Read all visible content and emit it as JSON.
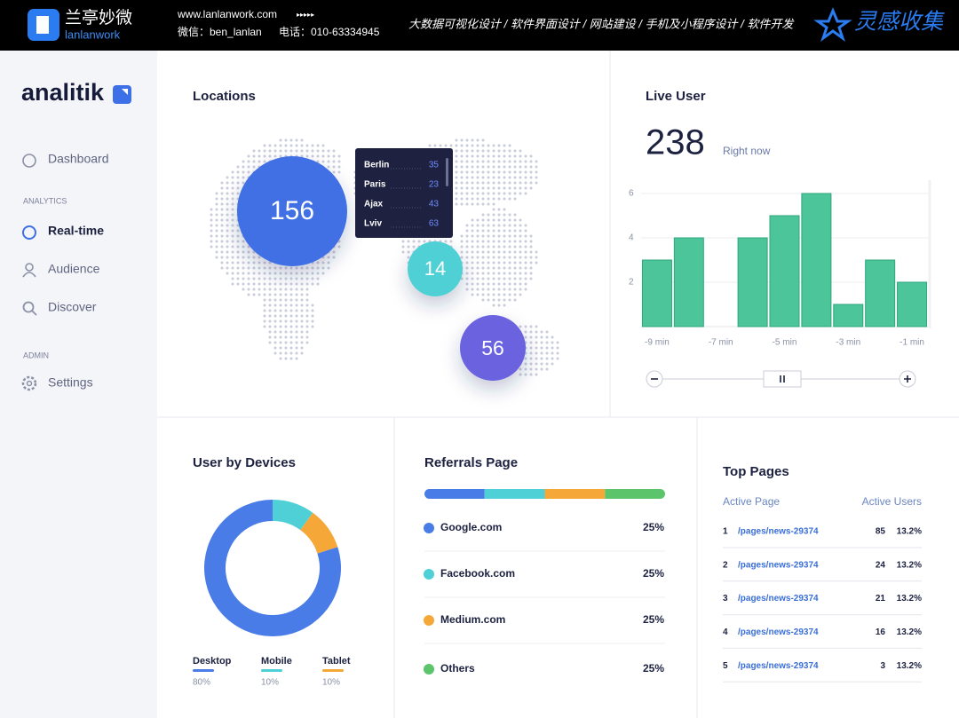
{
  "header": {
    "brand": "兰亭妙微",
    "brand_sub": "lanlanwork",
    "site": "www.lanlanwork.com",
    "arrows": "▸▸▸▸▸",
    "wechat": "微信：ben_lanlan",
    "phone": "电话：010-63334945",
    "services": "大数据可视化设计  /  软件界面设计  /  网站建设  /  手机及小程序设计  /  软件开发",
    "right_logo": "灵感收集"
  },
  "sidebar": {
    "logo": "analitik",
    "dashboard": "Dashboard",
    "analytics_section": "ANALYTICS",
    "realtime": "Real-time",
    "audience": "Audience",
    "discover": "Discover",
    "admin_section": "ADMIN",
    "settings": "Settings"
  },
  "locations": {
    "title": "Locations",
    "bubbles": [
      "156",
      "14",
      "56"
    ],
    "tooltip": [
      [
        "Berlin",
        "35"
      ],
      [
        "Paris",
        "23"
      ],
      [
        "Ajax",
        "43"
      ],
      [
        "Lviv",
        "63"
      ]
    ]
  },
  "live_user": {
    "count": "238",
    "caption": "Right now"
  },
  "chart_data": [
    {
      "type": "bar",
      "title": "Live User",
      "categories": [
        "-9 min",
        null,
        "-7 min",
        null,
        "-5 min",
        null,
        "-3 min",
        null,
        "-1 min"
      ],
      "values": [
        3,
        4,
        0,
        4,
        5,
        6,
        1,
        3,
        2
      ],
      "color": "#4cc59b",
      "ylim": [
        0,
        6.5
      ],
      "yticks": [
        2,
        4,
        6
      ],
      "grid": true
    },
    {
      "type": "pie",
      "title": "User by Devices",
      "categories": [
        "Desktop",
        "Mobile",
        "Tablet"
      ],
      "values": [
        80,
        10,
        10
      ],
      "value_labels": [
        "80%",
        "10%",
        "10%"
      ],
      "colors": [
        "#4a7ce8",
        "#4fd0d6",
        "#f5a838"
      ]
    },
    {
      "type": "stacked-bar",
      "title": "Referrals Page",
      "categories": [
        "Google.com",
        "Facebook.com",
        "Medium.com",
        "Others"
      ],
      "values": [
        25,
        25,
        25,
        25
      ],
      "value_labels": [
        "25%",
        "25%",
        "25%",
        "25%"
      ],
      "colors": [
        "#4a7ce8",
        "#4fd0d6",
        "#f5a838",
        "#5cc46a"
      ],
      "xlim": [
        0,
        100
      ]
    }
  ],
  "top_pages": {
    "title": "Top Pages",
    "columns": [
      "Active Page",
      "Active Users"
    ],
    "rows": [
      [
        "1",
        "/pages/news-29374",
        "85",
        "13.2%"
      ],
      [
        "2",
        "/pages/news-29374",
        "24",
        "13.2%"
      ],
      [
        "3",
        "/pages/news-29374",
        "21",
        "13.2%"
      ],
      [
        "4",
        "/pages/news-29374",
        "16",
        "13.2%"
      ],
      [
        "5",
        "/pages/news-29374",
        "3",
        "13.2%"
      ]
    ]
  }
}
